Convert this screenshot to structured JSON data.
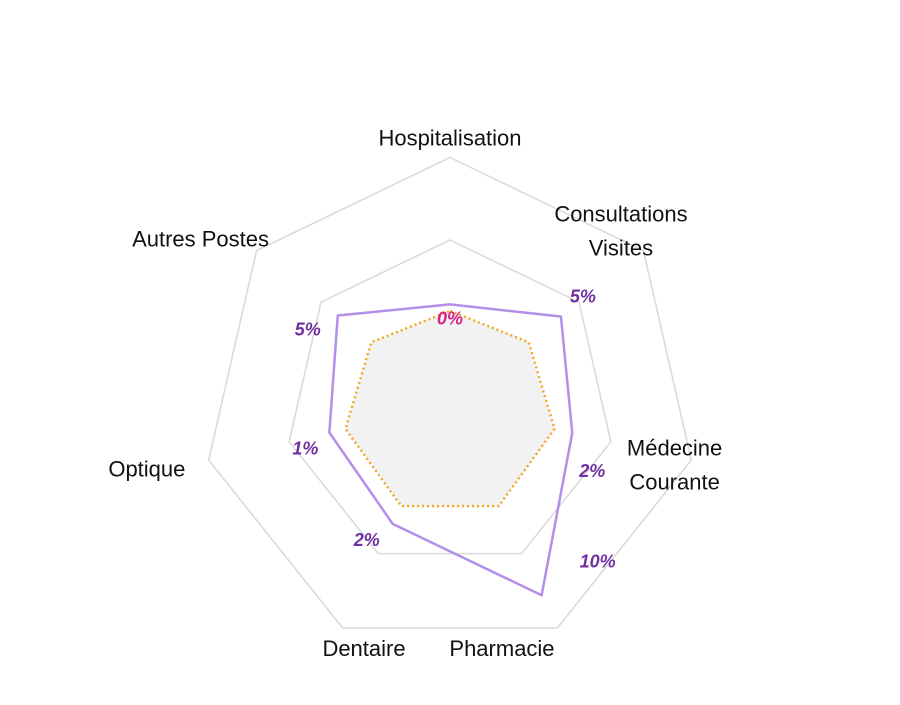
{
  "chart_data": {
    "type": "radar",
    "axes": [
      {
        "label_lines": [
          "Hospitalisation"
        ]
      },
      {
        "label_lines": [
          "Consultations",
          "Visites"
        ]
      },
      {
        "label_lines": [
          "Médecine",
          "Courante"
        ]
      },
      {
        "label_lines": [
          "Pharmacie"
        ]
      },
      {
        "label_lines": [
          "Dentaire"
        ]
      },
      {
        "label_lines": [
          "Optique"
        ]
      },
      {
        "label_lines": [
          "Autres Postes"
        ]
      }
    ],
    "series": [
      {
        "values": [
          0.61,
          0.86,
          0.76,
          1.28,
          0.8,
          0.75,
          0.87
        ],
        "color": "#b48fe8",
        "style": "solid"
      },
      {
        "values": [
          0.57,
          0.61,
          0.65,
          0.68,
          0.68,
          0.65,
          0.61
        ],
        "color": "#f5a623",
        "style": "dotted",
        "fill": "#f2f2f2"
      }
    ],
    "value_labels": [
      {
        "axis": 0,
        "text": "0%",
        "color": "#d6218a"
      },
      {
        "axis": 1,
        "text": "5%",
        "color": "#7030a0"
      },
      {
        "axis": 2,
        "text": "2%",
        "color": "#7030a0"
      },
      {
        "axis": 3,
        "text": "10%",
        "color": "#7030a0"
      },
      {
        "axis": 4,
        "text": "2%",
        "color": "#7030a0"
      },
      {
        "axis": 5,
        "text": "1%",
        "color": "#7030a0"
      },
      {
        "axis": 6,
        "text": "5%",
        "color": "#7030a0"
      }
    ],
    "grid_levels": [
      0.5,
      1.0,
      1.5
    ],
    "grid_color": "#d9d9d9",
    "legend": "none"
  }
}
